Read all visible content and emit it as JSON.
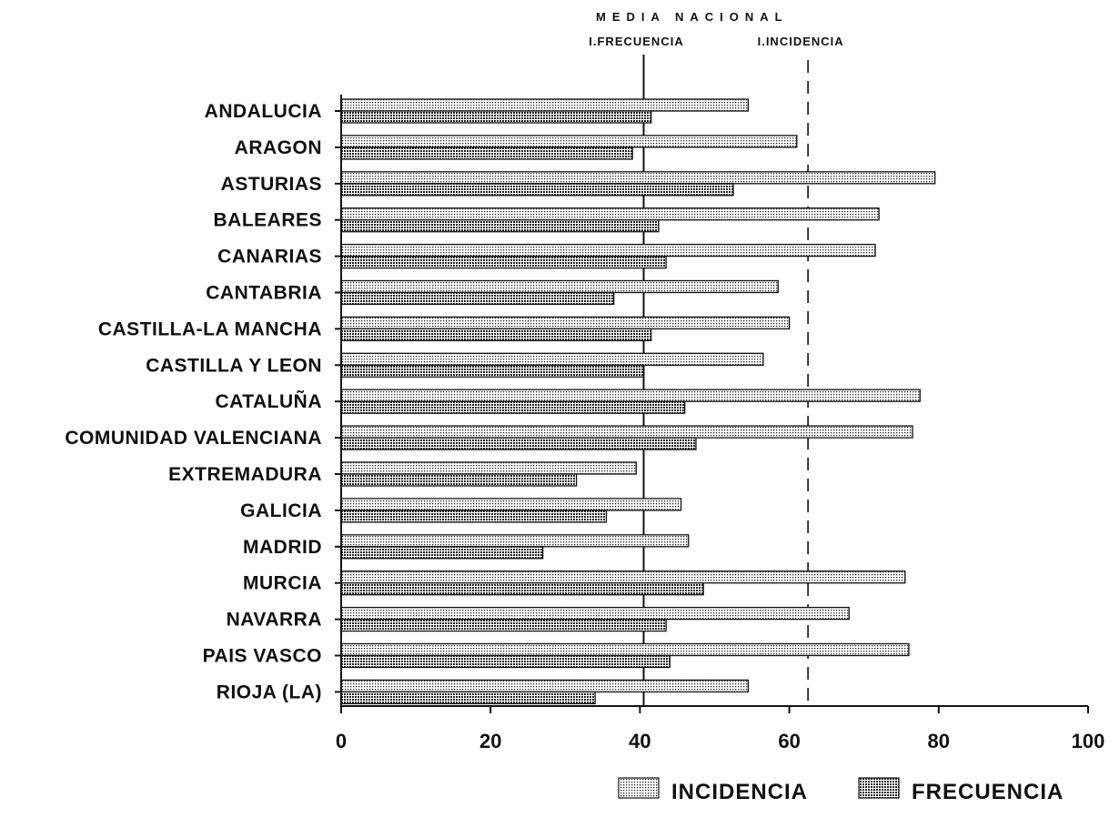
{
  "chart_data": {
    "type": "bar",
    "orientation": "horizontal",
    "header": "MEDIA NACIONAL",
    "categories": [
      "ANDALUCIA",
      "ARAGON",
      "ASTURIAS",
      "BALEARES",
      "CANARIAS",
      "CANTABRIA",
      "CASTILLA-LA MANCHA",
      "CASTILLA Y LEON",
      "CATALUÑA",
      "COMUNIDAD VALENCIANA",
      "EXTREMADURA",
      "GALICIA",
      "MADRID",
      "MURCIA",
      "NAVARRA",
      "PAIS VASCO",
      "RIOJA (LA)"
    ],
    "series": [
      {
        "name": "INCIDENCIA",
        "pattern": "dotted",
        "values": [
          54.5,
          61,
          79.5,
          72,
          71.5,
          58.5,
          60,
          56.5,
          77.5,
          76.5,
          39.5,
          45.5,
          46.5,
          75.5,
          68,
          76,
          54.5
        ]
      },
      {
        "name": "FRECUENCIA",
        "pattern": "crosshatch",
        "values": [
          41.5,
          39,
          52.5,
          42.5,
          43.5,
          36.5,
          41.5,
          40.5,
          46,
          47.5,
          31.5,
          35.5,
          27,
          48.5,
          43.5,
          44,
          34
        ]
      }
    ],
    "reference_lines": [
      {
        "label": "I.FRECUENCIA",
        "value": 40.5,
        "style": "solid"
      },
      {
        "label": "I.INCIDENCIA",
        "value": 62.5,
        "style": "dashed"
      }
    ],
    "xlim": [
      0,
      100
    ],
    "xticks": [
      0,
      20,
      40,
      60,
      80,
      100
    ],
    "grid": false,
    "legend_position": "bottom-right",
    "colors": {
      "ink": "#111111",
      "background": "#ffffff"
    }
  }
}
